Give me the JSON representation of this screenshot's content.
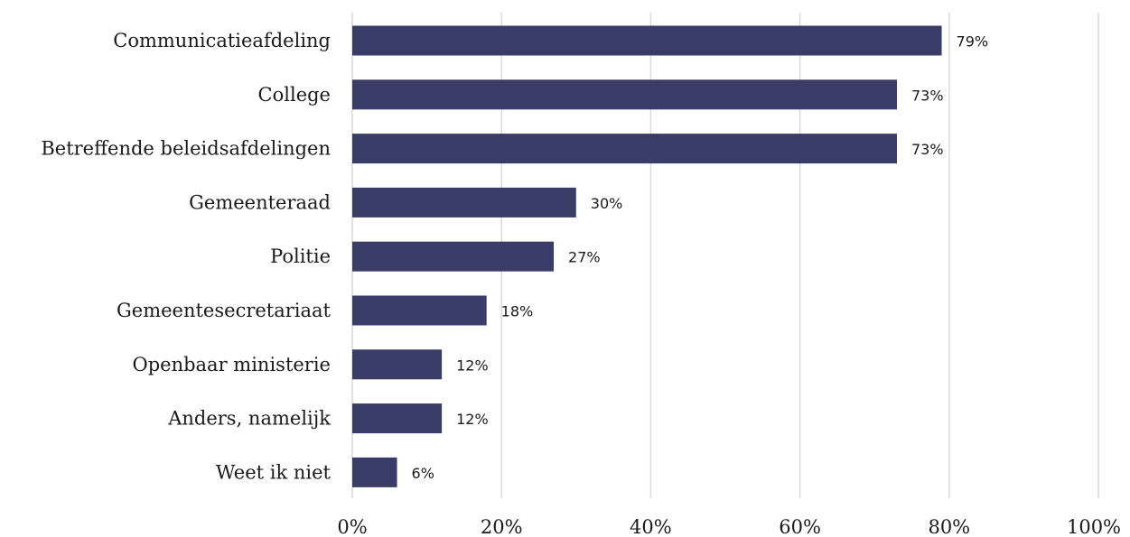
{
  "chart_data": {
    "type": "bar",
    "orientation": "horizontal",
    "categories": [
      "Communicatieafdeling",
      "College",
      "Betreffende beleidsafdelingen",
      "Gemeenteraad",
      "Politie",
      "Gemeentesecretariaat",
      "Openbaar ministerie",
      "Anders, namelijk",
      "Weet ik niet"
    ],
    "values": [
      79,
      73,
      73,
      30,
      27,
      18,
      12,
      12,
      6
    ],
    "data_labels": [
      "79%",
      "73%",
      "73%",
      "30%",
      "27%",
      "18%",
      "12%",
      "12%",
      "6%"
    ],
    "x_ticks": [
      "0%",
      "20%",
      "40%",
      "60%",
      "80%",
      "100%"
    ],
    "xlim": [
      0,
      100
    ],
    "grid": true,
    "bar_color": "#383c66",
    "title": "",
    "xlabel": "",
    "ylabel": ""
  }
}
